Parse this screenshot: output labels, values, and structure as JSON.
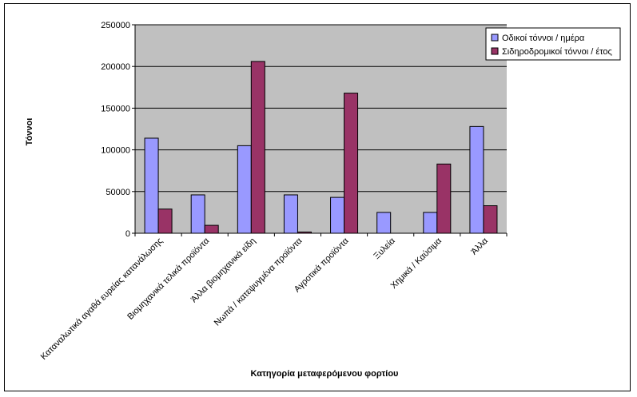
{
  "chart_data": {
    "type": "bar",
    "title": "",
    "xlabel": "Κατηγορία μεταφερόμενου φορτίου",
    "ylabel": "Τόννοι",
    "ylim": [
      0,
      250000
    ],
    "yticks": [
      0,
      50000,
      100000,
      150000,
      200000,
      250000
    ],
    "grid": true,
    "legend": "top-right",
    "categories": [
      "Καταναλωτικά αγαθά ευρείας κατανάλωσης",
      "Βιομηχανικά τελικά προϊόντα",
      "Άλλα βιομηχανικά είδη",
      "Νωπά / κατεψυγμένα προϊόντα",
      "Αγροτικά προϊόντα",
      "Ξυλεία",
      "Χημικά / Καύσιμα",
      "Άλλα"
    ],
    "series": [
      {
        "name": "Οδικοί τόννοι / ημέρα",
        "color": "#9999ff",
        "values": [
          114000,
          46000,
          105000,
          46000,
          43000,
          25000,
          25000,
          128000
        ]
      },
      {
        "name": "Σιδηροδρομικοί τόννοι / έτος",
        "color": "#993366",
        "values": [
          29000,
          9500,
          206000,
          1500,
          168000,
          0,
          83000,
          33000
        ]
      }
    ]
  }
}
